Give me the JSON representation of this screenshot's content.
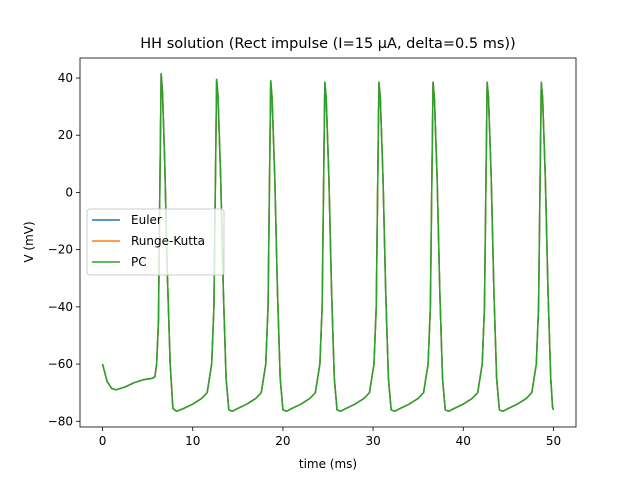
{
  "chart_data": {
    "type": "line",
    "title": "HH solution (Rect impulse (I=15 µA, delta=0.5 ms))",
    "xlabel": "time (ms)",
    "ylabel": "V (mV)",
    "xlim": [
      -2.5,
      52.5
    ],
    "ylim": [
      -82,
      47
    ],
    "xticks": [
      0,
      10,
      20,
      30,
      40,
      50
    ],
    "yticks": [
      -80,
      -60,
      -40,
      -20,
      0,
      20,
      40
    ],
    "xtick_labels": [
      "0",
      "10",
      "20",
      "30",
      "40",
      "50"
    ],
    "ytick_labels": [
      "−80",
      "−60",
      "−40",
      "−20",
      "0",
      "20",
      "40"
    ],
    "grid": false,
    "legend_position": "center-left",
    "series": [
      {
        "name": "Euler",
        "color": "#1f77b4"
      },
      {
        "name": "Runge-Kutta",
        "color": "#ff7f0e"
      },
      {
        "name": "PC",
        "color": "#2ca02c"
      }
    ],
    "trace": {
      "description_points": [
        [
          0,
          -60
        ],
        [
          0.5,
          -66
        ],
        [
          1,
          -68.5
        ],
        [
          1.5,
          -69
        ],
        [
          2.5,
          -68
        ],
        [
          3.5,
          -66.5
        ],
        [
          4.5,
          -65.5
        ],
        [
          5.5,
          -65
        ],
        [
          5.8,
          -64.5
        ],
        [
          6.0,
          -60
        ],
        [
          6.2,
          -45
        ],
        [
          6.35,
          0
        ],
        [
          6.5,
          41.5
        ],
        [
          6.65,
          35
        ],
        [
          6.9,
          10
        ],
        [
          7.2,
          -30
        ],
        [
          7.5,
          -60
        ],
        [
          7.8,
          -75.5
        ],
        [
          8.2,
          -76.5
        ],
        [
          9,
          -75.5
        ],
        [
          10,
          -74
        ],
        [
          11,
          -72
        ],
        [
          11.6,
          -70
        ],
        [
          12.1,
          -60
        ],
        [
          12.35,
          -40
        ],
        [
          12.5,
          0
        ],
        [
          12.65,
          39.5
        ],
        [
          12.8,
          34
        ],
        [
          13.1,
          5
        ],
        [
          13.4,
          -35
        ],
        [
          13.7,
          -65
        ],
        [
          14.0,
          -76
        ],
        [
          14.4,
          -76.5
        ],
        [
          15,
          -75.5
        ],
        [
          16,
          -74
        ],
        [
          17,
          -72
        ],
        [
          17.6,
          -70
        ],
        [
          18.1,
          -60
        ],
        [
          18.35,
          -40
        ],
        [
          18.5,
          0
        ],
        [
          18.65,
          39
        ],
        [
          18.8,
          33
        ],
        [
          19.1,
          5
        ],
        [
          19.4,
          -35
        ],
        [
          19.7,
          -65
        ],
        [
          20.0,
          -76
        ],
        [
          20.4,
          -76.5
        ],
        [
          21,
          -75.5
        ],
        [
          22,
          -74
        ],
        [
          23,
          -72
        ],
        [
          23.6,
          -70
        ],
        [
          24.1,
          -60
        ],
        [
          24.35,
          -40
        ],
        [
          24.5,
          0
        ],
        [
          24.65,
          38.5
        ],
        [
          24.8,
          33
        ],
        [
          25.1,
          5
        ],
        [
          25.4,
          -35
        ],
        [
          25.7,
          -65
        ],
        [
          26.0,
          -76
        ],
        [
          26.4,
          -76.5
        ],
        [
          27,
          -75.5
        ],
        [
          28,
          -74
        ],
        [
          29,
          -72
        ],
        [
          29.6,
          -70
        ],
        [
          30.1,
          -60
        ],
        [
          30.35,
          -40
        ],
        [
          30.5,
          0
        ],
        [
          30.65,
          38.5
        ],
        [
          30.8,
          33
        ],
        [
          31.1,
          5
        ],
        [
          31.4,
          -35
        ],
        [
          31.7,
          -65
        ],
        [
          32.0,
          -76
        ],
        [
          32.4,
          -76.5
        ],
        [
          33,
          -75.5
        ],
        [
          34,
          -74
        ],
        [
          35,
          -72
        ],
        [
          35.6,
          -70
        ],
        [
          36.1,
          -60
        ],
        [
          36.35,
          -40
        ],
        [
          36.5,
          0
        ],
        [
          36.65,
          38.5
        ],
        [
          36.8,
          33
        ],
        [
          37.1,
          5
        ],
        [
          37.4,
          -35
        ],
        [
          37.7,
          -65
        ],
        [
          38.0,
          -76
        ],
        [
          38.4,
          -76.5
        ],
        [
          39,
          -75.5
        ],
        [
          40,
          -74
        ],
        [
          41,
          -72
        ],
        [
          41.6,
          -70
        ],
        [
          42.1,
          -60
        ],
        [
          42.35,
          -40
        ],
        [
          42.5,
          0
        ],
        [
          42.65,
          38.5
        ],
        [
          42.8,
          33
        ],
        [
          43.1,
          5
        ],
        [
          43.4,
          -35
        ],
        [
          43.7,
          -65
        ],
        [
          44.0,
          -76
        ],
        [
          44.4,
          -76.5
        ],
        [
          45,
          -75.5
        ],
        [
          46,
          -74
        ],
        [
          47,
          -72
        ],
        [
          47.6,
          -70
        ],
        [
          48.1,
          -60
        ],
        [
          48.35,
          -40
        ],
        [
          48.5,
          0
        ],
        [
          48.65,
          38.5
        ],
        [
          48.8,
          33
        ],
        [
          49.1,
          5
        ],
        [
          49.4,
          -35
        ],
        [
          49.7,
          -65
        ],
        [
          49.9,
          -75
        ],
        [
          50.0,
          -76
        ]
      ]
    }
  }
}
